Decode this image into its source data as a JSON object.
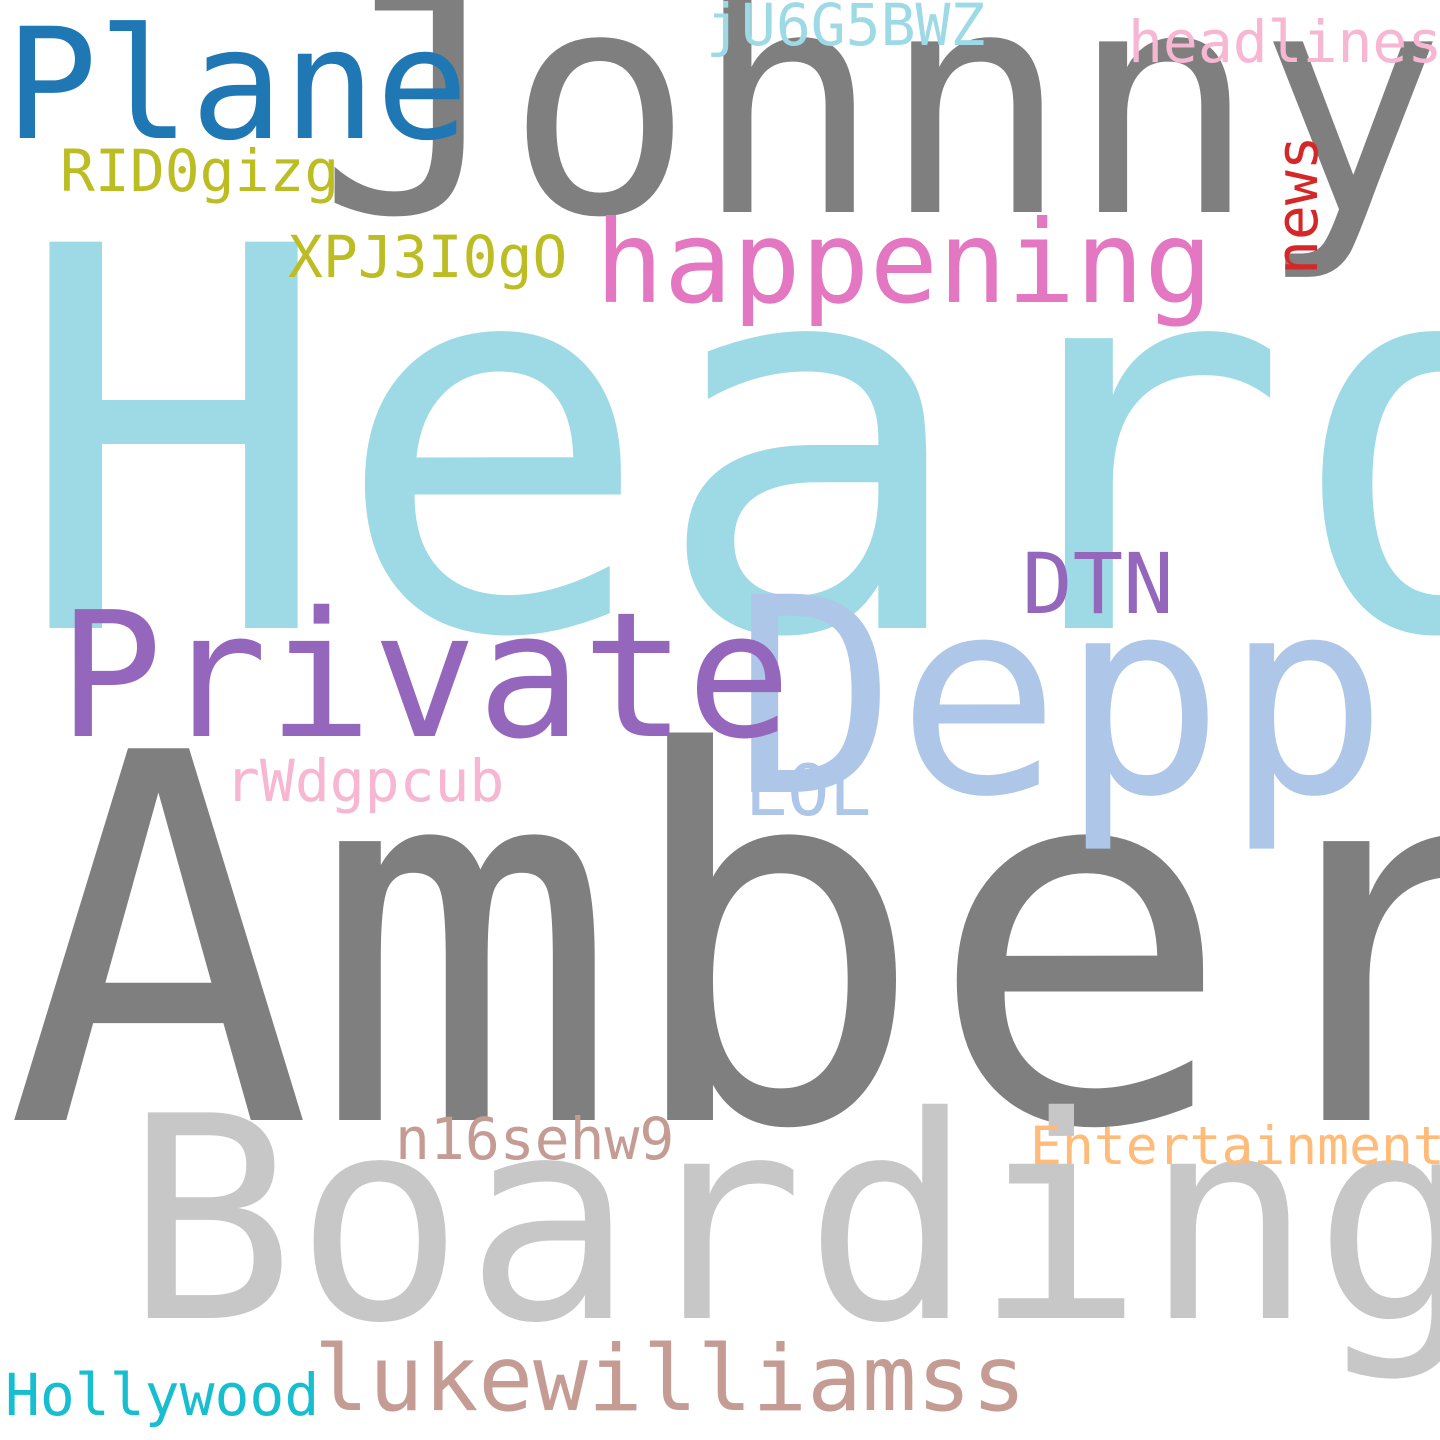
{
  "words": {
    "heard": {
      "text": "Heard",
      "color": "#9edae5"
    },
    "amber": {
      "text": "Amber",
      "color": "#7f7f7f"
    },
    "johnny": {
      "text": "Johnny",
      "color": "#7f7f7f"
    },
    "boarding": {
      "text": "Boarding",
      "color": "#c7c7c7"
    },
    "depp": {
      "text": "Depp",
      "color": "#aec7e8"
    },
    "private": {
      "text": "Private",
      "color": "#9467bd"
    },
    "plane": {
      "text": "Plane",
      "color": "#1f77b4"
    },
    "happening": {
      "text": "happening",
      "color": "#e377c2"
    },
    "lukewilliamss": {
      "text": "lukewilliamss",
      "color": "#c49c94"
    },
    "dtn": {
      "text": "DTN",
      "color": "#9467bd"
    },
    "lol": {
      "text": "LOL",
      "color": "#aec7e8"
    },
    "news": {
      "text": "news",
      "color": "#d62728"
    },
    "headlines": {
      "text": "headlines",
      "color": "#f7b6d2"
    },
    "ju6g5bwz": {
      "text": "jU6G5BWZ",
      "color": "#9edae5"
    },
    "rid0gizg": {
      "text": "RID0gizg",
      "color": "#bcbd22"
    },
    "xpj3i0g0": {
      "text": "XPJ3I0gO",
      "color": "#bcbd22"
    },
    "rwdgpcub": {
      "text": "rWdgpcub",
      "color": "#f7b6d2"
    },
    "n16sehw9": {
      "text": "n16sehw9",
      "color": "#c49c94"
    },
    "entertainment": {
      "text": "Entertainment",
      "color": "#ffbb78"
    },
    "hollywood": {
      "text": "Hollywood",
      "color": "#17becf"
    }
  }
}
